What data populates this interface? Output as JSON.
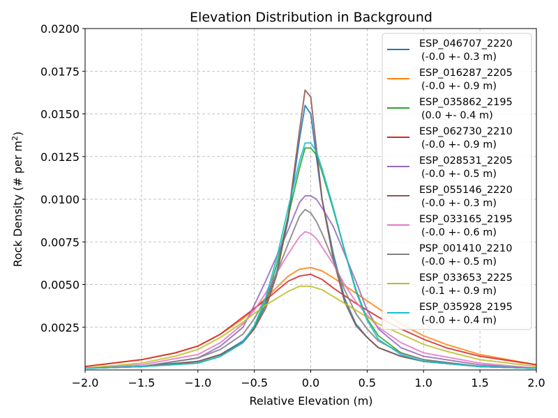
{
  "chart_data": {
    "type": "line",
    "title": "Elevation Distribution in Background",
    "xlabel": "Relative Elevation (m)",
    "ylabel_main": "Rock Density (# per m",
    "ylabel_sup": "2",
    "ylabel_end": ")",
    "xlim": [
      -2.0,
      2.0
    ],
    "ylim": [
      0.0,
      0.02
    ],
    "xticks": [
      "−2.0",
      "−1.5",
      "−1.0",
      "−0.5",
      "0.0",
      "0.5",
      "1.0",
      "1.5",
      "2.0"
    ],
    "xtick_values": [
      -2.0,
      -1.5,
      -1.0,
      -0.5,
      0.0,
      0.5,
      1.0,
      1.5,
      2.0
    ],
    "yticks": [
      "0.0025",
      "0.0050",
      "0.0075",
      "0.0100",
      "0.0125",
      "0.0150",
      "0.0175",
      "0.0200"
    ],
    "ytick_values": [
      0.0025,
      0.005,
      0.0075,
      0.01,
      0.0125,
      0.015,
      0.0175,
      0.02
    ],
    "grid": true,
    "legend_position": "top-right",
    "series": [
      {
        "name": "ESP_046707_2220",
        "stats": "(-0.0 +- 0.3 m)",
        "color": "#1f77b4",
        "x": [
          -2.0,
          -1.5,
          -1.0,
          -0.8,
          -0.6,
          -0.5,
          -0.4,
          -0.3,
          -0.2,
          -0.1,
          -0.05,
          0.0,
          0.05,
          0.1,
          0.2,
          0.3,
          0.4,
          0.5,
          0.6,
          0.8,
          1.0,
          1.5,
          2.0
        ],
        "y": [
          0.0001,
          0.0002,
          0.0005,
          0.0009,
          0.0017,
          0.0025,
          0.0038,
          0.0058,
          0.0088,
          0.0135,
          0.0155,
          0.015,
          0.0125,
          0.01,
          0.0068,
          0.0042,
          0.0027,
          0.0019,
          0.0013,
          0.0008,
          0.0005,
          0.0002,
          0.0001
        ]
      },
      {
        "name": "ESP_016287_2205",
        "stats": "(-0.0 +- 0.9 m)",
        "color": "#ff7f0e",
        "x": [
          -2.0,
          -1.5,
          -1.2,
          -1.0,
          -0.8,
          -0.6,
          -0.4,
          -0.2,
          -0.1,
          0.0,
          0.1,
          0.2,
          0.4,
          0.6,
          0.8,
          1.0,
          1.2,
          1.5,
          2.0
        ],
        "y": [
          0.0002,
          0.0006,
          0.001,
          0.0014,
          0.0021,
          0.003,
          0.0042,
          0.0055,
          0.0059,
          0.006,
          0.0058,
          0.0054,
          0.0045,
          0.0036,
          0.0027,
          0.002,
          0.0015,
          0.0009,
          0.0003
        ]
      },
      {
        "name": "ESP_035862_2195",
        "stats": "(0.0 +- 0.4 m)",
        "color": "#2ca02c",
        "x": [
          -2.0,
          -1.5,
          -1.0,
          -0.8,
          -0.6,
          -0.5,
          -0.4,
          -0.3,
          -0.2,
          -0.1,
          -0.05,
          0.0,
          0.05,
          0.1,
          0.2,
          0.3,
          0.4,
          0.5,
          0.6,
          0.8,
          1.0,
          1.5,
          2.0
        ],
        "y": [
          0.0001,
          0.0002,
          0.0004,
          0.0008,
          0.0016,
          0.0025,
          0.004,
          0.0062,
          0.009,
          0.0118,
          0.013,
          0.013,
          0.0126,
          0.0116,
          0.0094,
          0.007,
          0.0047,
          0.003,
          0.002,
          0.001,
          0.0006,
          0.0002,
          0.0001
        ]
      },
      {
        "name": "ESP_062730_2210",
        "stats": "(-0.0 +- 0.9 m)",
        "color": "#d62728",
        "x": [
          -2.0,
          -1.5,
          -1.2,
          -1.0,
          -0.8,
          -0.6,
          -0.4,
          -0.2,
          -0.1,
          0.0,
          0.1,
          0.2,
          0.4,
          0.6,
          0.8,
          1.0,
          1.2,
          1.5,
          2.0
        ],
        "y": [
          0.0002,
          0.0006,
          0.001,
          0.0014,
          0.0021,
          0.0031,
          0.0041,
          0.0052,
          0.0055,
          0.0056,
          0.0053,
          0.0048,
          0.0039,
          0.0031,
          0.0024,
          0.0018,
          0.0013,
          0.0008,
          0.0003
        ]
      },
      {
        "name": "ESP_028531_2205",
        "stats": "(-0.0 +- 0.5 m)",
        "color": "#9467bd",
        "x": [
          -2.0,
          -1.5,
          -1.0,
          -0.8,
          -0.6,
          -0.5,
          -0.4,
          -0.3,
          -0.2,
          -0.1,
          -0.05,
          0.0,
          0.05,
          0.1,
          0.2,
          0.3,
          0.4,
          0.5,
          0.6,
          0.8,
          1.0,
          1.5,
          2.0
        ],
        "y": [
          0.0001,
          0.0002,
          0.0007,
          0.0014,
          0.0025,
          0.0038,
          0.0052,
          0.0067,
          0.0082,
          0.0098,
          0.0102,
          0.0102,
          0.01,
          0.0095,
          0.0084,
          0.0068,
          0.0052,
          0.0035,
          0.0024,
          0.0013,
          0.0008,
          0.0003,
          0.0001
        ]
      },
      {
        "name": "ESP_055146_2220",
        "stats": "(-0.0 +- 0.3 m)",
        "color": "#8c564b",
        "x": [
          -2.0,
          -1.5,
          -1.0,
          -0.8,
          -0.6,
          -0.5,
          -0.4,
          -0.3,
          -0.2,
          -0.1,
          -0.05,
          0.0,
          0.05,
          0.1,
          0.2,
          0.3,
          0.4,
          0.5,
          0.6,
          0.8,
          1.0,
          1.5,
          2.0
        ],
        "y": [
          0.0001,
          0.0002,
          0.0005,
          0.0009,
          0.0016,
          0.0024,
          0.0036,
          0.0056,
          0.009,
          0.014,
          0.0164,
          0.016,
          0.013,
          0.01,
          0.0065,
          0.004,
          0.0026,
          0.0019,
          0.0013,
          0.0008,
          0.0005,
          0.0002,
          0.0001
        ]
      },
      {
        "name": "ESP_033165_2195",
        "stats": "(-0.0 +- 0.6 m)",
        "color": "#e377c2",
        "x": [
          -2.0,
          -1.5,
          -1.0,
          -0.8,
          -0.6,
          -0.5,
          -0.4,
          -0.3,
          -0.2,
          -0.1,
          -0.05,
          0.0,
          0.05,
          0.1,
          0.2,
          0.3,
          0.4,
          0.5,
          0.6,
          0.8,
          1.0,
          1.5,
          2.0
        ],
        "y": [
          0.0001,
          0.0003,
          0.0009,
          0.0016,
          0.0027,
          0.0035,
          0.0045,
          0.0057,
          0.0068,
          0.0078,
          0.0081,
          0.008,
          0.0077,
          0.0072,
          0.0062,
          0.005,
          0.004,
          0.0032,
          0.0025,
          0.0016,
          0.001,
          0.0004,
          0.0001
        ]
      },
      {
        "name": "PSP_001410_2210",
        "stats": "(-0.0 +- 0.5 m)",
        "color": "#7f7f7f",
        "x": [
          -2.0,
          -1.5,
          -1.0,
          -0.8,
          -0.6,
          -0.5,
          -0.4,
          -0.3,
          -0.2,
          -0.1,
          -0.05,
          0.0,
          0.05,
          0.1,
          0.2,
          0.3,
          0.4,
          0.5,
          0.6,
          0.8,
          1.0,
          1.5,
          2.0
        ],
        "y": [
          0.0001,
          0.0002,
          0.0007,
          0.0012,
          0.0021,
          0.003,
          0.0042,
          0.0057,
          0.0074,
          0.009,
          0.0094,
          0.0092,
          0.0087,
          0.008,
          0.0064,
          0.0047,
          0.0033,
          0.0024,
          0.0017,
          0.001,
          0.0006,
          0.0002,
          0.0001
        ]
      },
      {
        "name": "ESP_033653_2225",
        "stats": "(-0.1 +- 0.9 m)",
        "color": "#bcbd22",
        "x": [
          -2.0,
          -1.5,
          -1.2,
          -1.0,
          -0.8,
          -0.6,
          -0.4,
          -0.2,
          -0.1,
          0.0,
          0.1,
          0.2,
          0.4,
          0.6,
          0.8,
          1.0,
          1.2,
          1.5,
          2.0
        ],
        "y": [
          0.0001,
          0.0004,
          0.0008,
          0.0012,
          0.0019,
          0.0028,
          0.0038,
          0.0046,
          0.0049,
          0.0049,
          0.0047,
          0.0043,
          0.0035,
          0.0027,
          0.0021,
          0.0015,
          0.0011,
          0.0006,
          0.0002
        ]
      },
      {
        "name": "ESP_035928_2195",
        "stats": "(-0.0 +- 0.4 m)",
        "color": "#17becf",
        "x": [
          -2.0,
          -1.5,
          -1.0,
          -0.8,
          -0.6,
          -0.5,
          -0.4,
          -0.3,
          -0.2,
          -0.1,
          -0.05,
          0.0,
          0.05,
          0.1,
          0.2,
          0.3,
          0.4,
          0.5,
          0.6,
          0.8,
          1.0,
          1.5,
          2.0
        ],
        "y": [
          0.0001,
          0.0002,
          0.0004,
          0.0008,
          0.0016,
          0.0026,
          0.0042,
          0.0066,
          0.0095,
          0.0122,
          0.0133,
          0.0133,
          0.0128,
          0.0118,
          0.0095,
          0.007,
          0.0046,
          0.0029,
          0.0018,
          0.0009,
          0.0005,
          0.0002,
          0.0001
        ]
      }
    ]
  }
}
